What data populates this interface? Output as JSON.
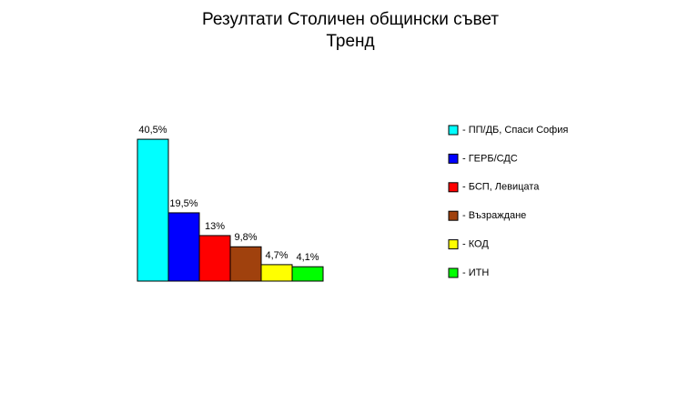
{
  "chart_data": {
    "type": "bar",
    "title": "Резултати Столичен общински съвет",
    "subtitle": "Тренд",
    "categories": [
      "- ПП/ДБ, Спаси София",
      "- ГЕРБ/СДС",
      "- БСП, Левицата",
      "- Възраждане",
      "- КОД",
      "- ИТН"
    ],
    "values": [
      40.5,
      19.5,
      13,
      9.8,
      4.7,
      4.1
    ],
    "value_labels": [
      "40,5%",
      "19,5%",
      "13%",
      "9,8%",
      "4,7%",
      "4,1%"
    ],
    "colors": [
      "#00ffff",
      "#0000ff",
      "#ff0000",
      "#a0410d",
      "#ffff00",
      "#00ff00"
    ],
    "legend": "right"
  }
}
